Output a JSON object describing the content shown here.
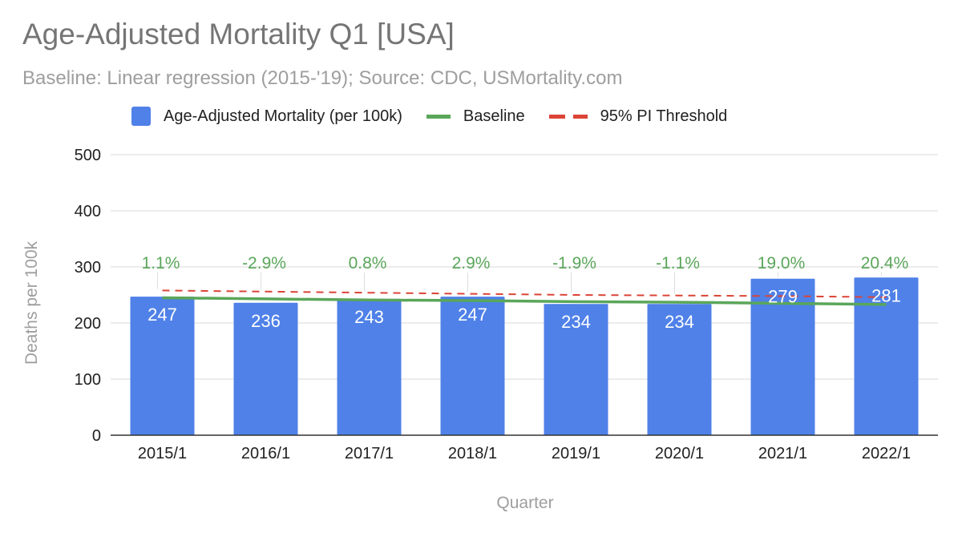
{
  "chart_data": {
    "type": "bar",
    "title": "Age-Adjusted Mortality Q1 [USA]",
    "subtitle": "Baseline: Linear regression (2015-'19); Source: CDC, USMortality.com",
    "xlabel": "Quarter",
    "ylabel": "Deaths per 100k",
    "ylim": [
      0,
      500
    ],
    "yticks": [
      0,
      100,
      200,
      300,
      400,
      500
    ],
    "grid": true,
    "legend_position": "top",
    "categories": [
      "2015/1",
      "2016/1",
      "2017/1",
      "2018/1",
      "2019/1",
      "2020/1",
      "2021/1",
      "2022/1"
    ],
    "series": [
      {
        "name": "Age-Adjusted Mortality (per 100k)",
        "kind": "bar",
        "color": "#4f81e8",
        "values": [
          247,
          236,
          243,
          247,
          234,
          234,
          279,
          281
        ]
      },
      {
        "name": "Baseline",
        "kind": "line",
        "color": "#5aa65a",
        "values": [
          245,
          243,
          241,
          240,
          238,
          237,
          235,
          233
        ]
      },
      {
        "name": "95% PI Threshold",
        "kind": "dashed-line",
        "color": "#db4437",
        "values": [
          258,
          256,
          254,
          252,
          250,
          249,
          248,
          246
        ]
      }
    ],
    "excess_labels": [
      "1.1%",
      "-2.9%",
      "0.8%",
      "2.9%",
      "-1.9%",
      "-1.1%",
      "19.0%",
      "20.4%"
    ],
    "excess_label_color": "#5aa65a"
  }
}
